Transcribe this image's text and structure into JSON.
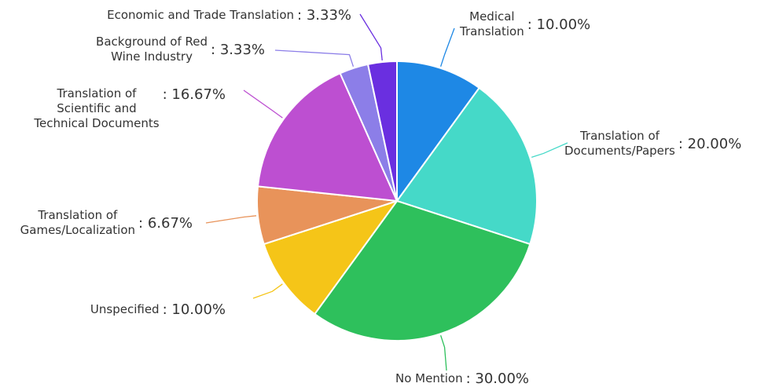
{
  "chart_data": {
    "type": "pie",
    "categories": [
      "Medical\nTranslation",
      "Translation of\nDocuments/Papers",
      "No Mention",
      "Unspecified",
      "Translation of\nGames/Localization",
      "Translation of\nScientific and\nTechnical Documents",
      "Background of Red\nWine Industry",
      "Economic and Trade Translation"
    ],
    "values": [
      10,
      20,
      30,
      10,
      6.67,
      16.67,
      3.33,
      3.33
    ],
    "value_labels": [
      ": 10.00%",
      ": 20.00%",
      ": 30.00%",
      ": 10.00%",
      ": 6.67%",
      ": 16.67%",
      ": 3.33%",
      ": 3.33%"
    ],
    "colors": [
      "#1e88e5",
      "#45d9c8",
      "#2ec05c",
      "#f5c518",
      "#e8935a",
      "#bd4fd1",
      "#8c7ee8",
      "#6a2fe0"
    ]
  }
}
